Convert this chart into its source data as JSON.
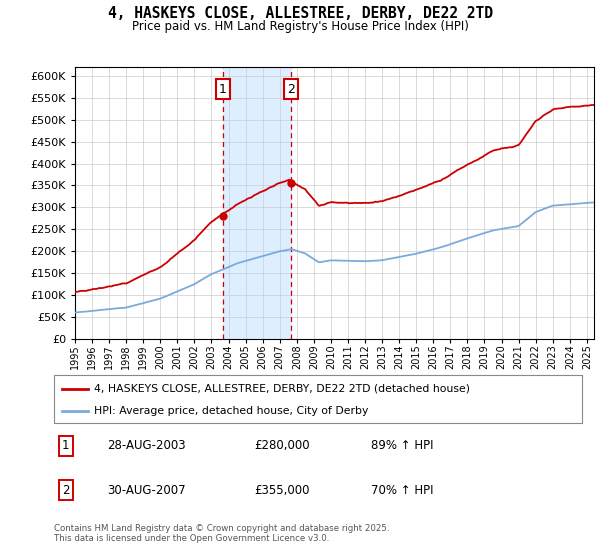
{
  "title": "4, HASKEYS CLOSE, ALLESTREE, DERBY, DE22 2TD",
  "subtitle": "Price paid vs. HM Land Registry's House Price Index (HPI)",
  "legend_line1": "4, HASKEYS CLOSE, ALLESTREE, DERBY, DE22 2TD (detached house)",
  "legend_line2": "HPI: Average price, detached house, City of Derby",
  "transaction1_date": "28-AUG-2003",
  "transaction1_price": "£280,000",
  "transaction1_hpi": "89% ↑ HPI",
  "transaction1_year": 2003.65,
  "transaction1_value": 280000,
  "transaction2_date": "30-AUG-2007",
  "transaction2_price": "£355,000",
  "transaction2_hpi": "70% ↑ HPI",
  "transaction2_year": 2007.65,
  "transaction2_value": 355000,
  "hpi_color": "#7aabdb",
  "price_color": "#cc0000",
  "shading_color": "#ddeeff",
  "ylim": [
    0,
    620000
  ],
  "yticks": [
    0,
    50000,
    100000,
    150000,
    200000,
    250000,
    300000,
    350000,
    400000,
    450000,
    500000,
    550000,
    600000
  ],
  "footer_line1": "Contains HM Land Registry data © Crown copyright and database right 2025.",
  "footer_line2": "This data is licensed under the Open Government Licence v3.0."
}
